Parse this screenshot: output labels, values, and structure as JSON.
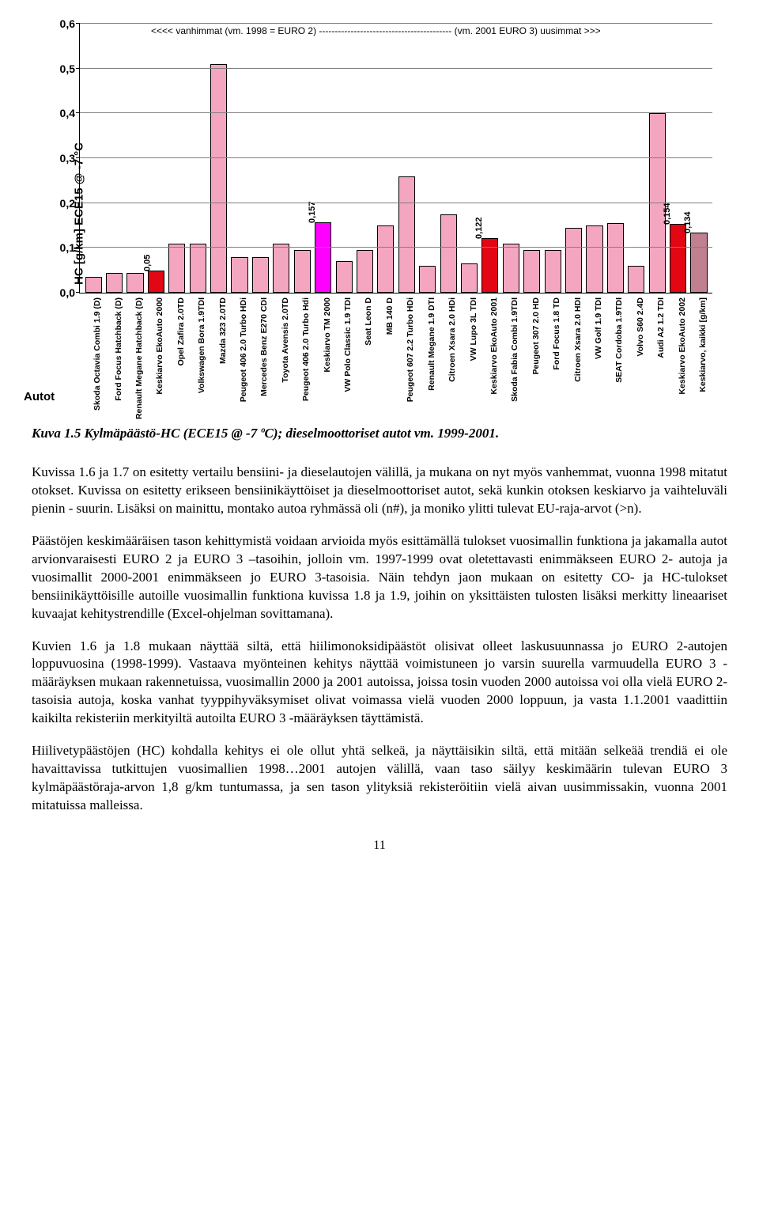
{
  "chart": {
    "type": "bar",
    "y_axis_label": "HC [g/km] ECE15 @ -7 °C",
    "x_axis_label": "Autot",
    "legend_top": "<<<< vanhimmat  (vm. 1998 = EURO 2)  ------------------------------------------  (vm. 2001 EURO 3)  uusimmat >>>",
    "ylim_max": 0.6,
    "y_ticks": [
      0.0,
      0.1,
      0.2,
      0.3,
      0.4,
      0.5,
      0.6
    ],
    "y_tick_labels": [
      "0,0",
      "0,1",
      "0,2",
      "0,3",
      "0,4",
      "0,5",
      "0,6"
    ],
    "default_color": "#f4a6c0",
    "highlight_colors": {
      "red": "#e30613",
      "magenta": "#ff00ff",
      "mauve": "#c08090"
    },
    "categories": [
      {
        "label": "Skoda Octavia Combi 1.9 (D)",
        "value": 0.035,
        "color": "#f4a6c0"
      },
      {
        "label": "Ford Focus Hatchback (D)",
        "value": 0.045,
        "color": "#f4a6c0"
      },
      {
        "label": "Renault Megane Hatchback (D)",
        "value": 0.045,
        "color": "#f4a6c0"
      },
      {
        "label": "Keskiarvo EkoAuto 2000",
        "value": 0.05,
        "color": "#e30613",
        "value_label": "0,05"
      },
      {
        "label": "Opel Zafira 2.0TD",
        "value": 0.11,
        "color": "#f4a6c0"
      },
      {
        "label": "Volkswagen Bora 1.9TDI",
        "value": 0.11,
        "color": "#f4a6c0"
      },
      {
        "label": "Mazda 323 2.0TD",
        "value": 0.51,
        "color": "#f4a6c0"
      },
      {
        "label": "Peugeot 406 2.0 Turbo HDi",
        "value": 0.08,
        "color": "#f4a6c0"
      },
      {
        "label": "Mercedes Benz E270 CDI",
        "value": 0.08,
        "color": "#f4a6c0"
      },
      {
        "label": "Toyota Avensis 2.0TD",
        "value": 0.11,
        "color": "#f4a6c0"
      },
      {
        "label": "Peugeot 406 2.0 Turbo Hdi",
        "value": 0.095,
        "color": "#f4a6c0"
      },
      {
        "label": "Keskiarvo TM 2000",
        "value": 0.157,
        "color": "#ff00ff",
        "value_label": "0,157"
      },
      {
        "label": "VW Polo Classic 1.9 TDI",
        "value": 0.07,
        "color": "#f4a6c0"
      },
      {
        "label": "Seat Leon  D",
        "value": 0.095,
        "color": "#f4a6c0"
      },
      {
        "label": "MB 140 D",
        "value": 0.15,
        "color": "#f4a6c0"
      },
      {
        "label": "Peugeot 607 2.2 Turbo HDi",
        "value": 0.26,
        "color": "#f4a6c0"
      },
      {
        "label": "Renault Megane 1.9 DTI",
        "value": 0.06,
        "color": "#f4a6c0"
      },
      {
        "label": "Citroen Xsara 2.0 HDi",
        "value": 0.175,
        "color": "#f4a6c0"
      },
      {
        "label": "VW Lupo 3L TDI",
        "value": 0.065,
        "color": "#f4a6c0"
      },
      {
        "label": "Keskiarvo EkoAuto 2001",
        "value": 0.122,
        "color": "#e30613",
        "value_label": "0,122"
      },
      {
        "label": "Skoda Fabia Combi 1.9TDI",
        "value": 0.11,
        "color": "#f4a6c0"
      },
      {
        "label": "Peugeot 307 2.0 HD",
        "value": 0.095,
        "color": "#f4a6c0"
      },
      {
        "label": "Ford Focus 1.8 TD",
        "value": 0.095,
        "color": "#f4a6c0"
      },
      {
        "label": "Citroen Xsara 2.0 HDI",
        "value": 0.145,
        "color": "#f4a6c0"
      },
      {
        "label": "VW  Golf 1.9 TDI",
        "value": 0.15,
        "color": "#f4a6c0"
      },
      {
        "label": "SEAT Cordoba 1.9TDI",
        "value": 0.155,
        "color": "#f4a6c0"
      },
      {
        "label": "Volvo S60 2.4D",
        "value": 0.06,
        "color": "#f4a6c0"
      },
      {
        "label": "Audi A2 1.2 TDI",
        "value": 0.4,
        "color": "#f4a6c0"
      },
      {
        "label": "Keskiarvo EkoAuto 2002",
        "value": 0.154,
        "color": "#e30613",
        "value_label": "0,154"
      },
      {
        "label": "Keskiarvo, kaikki [g/km]",
        "value": 0.134,
        "color": "#c08090",
        "value_label": "0,134"
      }
    ]
  },
  "caption": "Kuva 1.5  Kylmäpäästö-HC (ECE15 @ -7 ºC); dieselmoottoriset autot vm. 1999-2001.",
  "paragraphs": [
    "Kuvissa 1.6 ja 1.7 on esitetty vertailu bensiini- ja dieselautojen välillä, ja mukana on nyt myös vanhemmat, vuonna 1998 mitatut otokset. Kuvissa on esitetty erikseen bensiinikäyttöiset ja dieselmoottoriset autot, sekä kunkin otoksen keskiarvo ja vaihteluväli pienin - suurin. Lisäksi on mainittu, montako autoa ryhmässä oli (n#), ja moniko ylitti tulevat EU-raja-arvot (>n).",
    "Päästöjen keskimääräisen tason kehittymistä voidaan arvioida myös esittämällä tulokset vuosimallin funktiona ja jakamalla autot arvionvaraisesti EURO 2 ja EURO 3 –tasoihin, jolloin vm. 1997-1999 ovat oletettavasti enimmäkseen EURO 2- autoja ja vuosimallit 2000-2001 enimmäkseen jo EURO 3-tasoisia. Näin tehdyn jaon mukaan on esitetty  CO- ja HC-tulokset bensiinikäyttöisille autoille vuosimallin funktiona kuvissa 1.8 ja 1.9, joihin on yksittäisten tulosten lisäksi merkitty lineaariset kuvaajat kehitystrendille (Excel-ohjelman sovittamana).",
    "Kuvien 1.6  ja 1.8 mukaan näyttää siltä, että hiilimonoksidipäästöt olisivat olleet laskusuunnassa jo EURO 2-autojen loppuvuosina (1998-1999). Vastaava myönteinen kehitys näyttää voimistuneen jo varsin suurella varmuudella EURO 3 -määräyksen mukaan rakennetuissa, vuosimallin 2000 ja 2001 autoissa, joissa tosin vuoden 2000 autoissa voi olla vielä EURO 2-tasoisia autoja, koska vanhat tyyppihyväksymiset olivat voimassa vielä vuoden 2000 loppuun, ja vasta 1.1.2001 vaadittiin kaikilta rekisteriin merkityiltä autoilta EURO 3 -määräyksen täyttämistä.",
    "Hiilivetypäästöjen (HC) kohdalla kehitys ei ole ollut yhtä selkeä, ja näyttäisikin siltä, että mitään selkeää trendiä ei ole havaittavissa tutkittujen vuosimallien 1998…2001 autojen välillä, vaan taso säilyy keskimäärin tulevan EURO 3 kylmäpäästöraja-arvon 1,8 g/km tuntumassa, ja sen tason ylityksiä rekisteröitiin vielä aivan uusimmissakin, vuonna 2001 mitatuissa malleissa."
  ],
  "page_number": "11"
}
